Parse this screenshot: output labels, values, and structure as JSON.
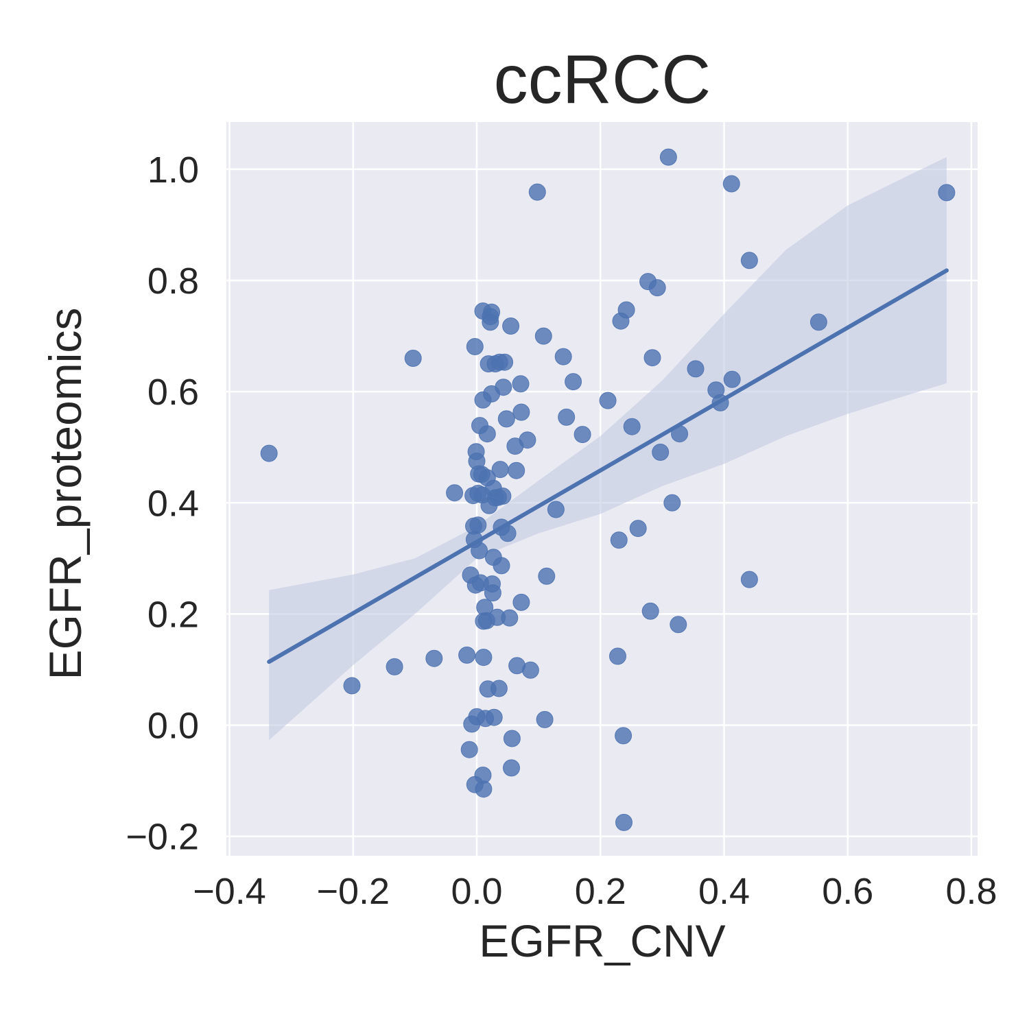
{
  "chart_data": {
    "type": "scatter",
    "title": "ccRCC",
    "xlabel": "EGFR_CNV",
    "ylabel": "EGFR_proteomics",
    "xlim": [
      -0.405,
      0.81
    ],
    "ylim": [
      -0.235,
      1.085
    ],
    "xticks": [
      -0.4,
      -0.2,
      0.0,
      0.2,
      0.4,
      0.6,
      0.8
    ],
    "yticks": [
      -0.2,
      0.0,
      0.2,
      0.4,
      0.6,
      0.8,
      1.0
    ],
    "xtick_labels": [
      "−0.4",
      "−0.2",
      "0.0",
      "0.2",
      "0.4",
      "0.6",
      "0.8"
    ],
    "ytick_labels": [
      "−0.2",
      "0.0",
      "0.2",
      "0.4",
      "0.6",
      "0.8",
      "1.0"
    ],
    "grid": true,
    "colors": {
      "background": "#eaeaf2",
      "grid": "#ffffff",
      "points": "#4c72b0",
      "line": "#4c72b0",
      "band": "#c3cce3",
      "text": "#262626"
    },
    "points": [
      [
        -0.336,
        0.489
      ],
      [
        -0.202,
        0.071
      ],
      [
        -0.133,
        0.105
      ],
      [
        -0.103,
        0.66
      ],
      [
        -0.069,
        0.12
      ],
      [
        -0.036,
        0.418
      ],
      [
        -0.016,
        0.126
      ],
      [
        -0.012,
        -0.044
      ],
      [
        -0.01,
        0.27
      ],
      [
        -0.008,
        0.002
      ],
      [
        -0.006,
        0.413
      ],
      [
        -0.005,
        0.358
      ],
      [
        -0.004,
        0.334
      ],
      [
        -0.003,
        0.681
      ],
      [
        -0.003,
        -0.107
      ],
      [
        -0.002,
        0.252
      ],
      [
        -0.001,
        0.492
      ],
      [
        0.0,
        0.475
      ],
      [
        0.0,
        0.015
      ],
      [
        0.002,
        0.36
      ],
      [
        0.002,
        0.417
      ],
      [
        0.003,
        0.452
      ],
      [
        0.004,
        0.314
      ],
      [
        0.005,
        0.539
      ],
      [
        0.006,
        0.256
      ],
      [
        0.008,
        0.451
      ],
      [
        0.009,
        0.414
      ],
      [
        0.01,
        0.745
      ],
      [
        0.01,
        -0.09
      ],
      [
        0.01,
        0.585
      ],
      [
        0.011,
        0.187
      ],
      [
        0.011,
        0.122
      ],
      [
        0.011,
        -0.115
      ],
      [
        0.013,
        0.212
      ],
      [
        0.014,
        0.012
      ],
      [
        0.016,
        0.188
      ],
      [
        0.017,
        0.445
      ],
      [
        0.017,
        0.524
      ],
      [
        0.018,
        0.065
      ],
      [
        0.019,
        0.65
      ],
      [
        0.02,
        0.395
      ],
      [
        0.022,
        0.725
      ],
      [
        0.022,
        0.735
      ],
      [
        0.024,
        0.596
      ],
      [
        0.024,
        0.743
      ],
      [
        0.025,
        0.254
      ],
      [
        0.026,
        0.238
      ],
      [
        0.027,
        0.302
      ],
      [
        0.027,
        0.426
      ],
      [
        0.028,
        0.014
      ],
      [
        0.03,
        0.409
      ],
      [
        0.03,
        0.65
      ],
      [
        0.033,
        0.194
      ],
      [
        0.035,
        0.41
      ],
      [
        0.036,
        0.066
      ],
      [
        0.037,
        0.653
      ],
      [
        0.038,
        0.46
      ],
      [
        0.04,
        0.287
      ],
      [
        0.04,
        0.356
      ],
      [
        0.042,
        0.412
      ],
      [
        0.043,
        0.608
      ],
      [
        0.045,
        0.653
      ],
      [
        0.048,
        0.551
      ],
      [
        0.05,
        0.345
      ],
      [
        0.053,
        0.193
      ],
      [
        0.055,
        0.718
      ],
      [
        0.056,
        -0.077
      ],
      [
        0.057,
        -0.024
      ],
      [
        0.062,
        0.502
      ],
      [
        0.064,
        0.458
      ],
      [
        0.065,
        0.107
      ],
      [
        0.071,
        0.614
      ],
      [
        0.072,
        0.563
      ],
      [
        0.072,
        0.221
      ],
      [
        0.082,
        0.513
      ],
      [
        0.087,
        0.099
      ],
      [
        0.098,
        0.959
      ],
      [
        0.108,
        0.7
      ],
      [
        0.11,
        0.01
      ],
      [
        0.113,
        0.268
      ],
      [
        0.128,
        0.388
      ],
      [
        0.14,
        0.663
      ],
      [
        0.145,
        0.554
      ],
      [
        0.156,
        0.618
      ],
      [
        0.171,
        0.523
      ],
      [
        0.212,
        0.584
      ],
      [
        0.228,
        0.124
      ],
      [
        0.23,
        0.333
      ],
      [
        0.233,
        0.727
      ],
      [
        0.237,
        -0.019
      ],
      [
        0.238,
        -0.175
      ],
      [
        0.242,
        0.747
      ],
      [
        0.251,
        0.537
      ],
      [
        0.261,
        0.354
      ],
      [
        0.277,
        0.798
      ],
      [
        0.281,
        0.205
      ],
      [
        0.284,
        0.661
      ],
      [
        0.292,
        0.787
      ],
      [
        0.297,
        0.491
      ],
      [
        0.31,
        1.022
      ],
      [
        0.316,
        0.4
      ],
      [
        0.326,
        0.181
      ],
      [
        0.328,
        0.524
      ],
      [
        0.354,
        0.641
      ],
      [
        0.387,
        0.603
      ],
      [
        0.394,
        0.58
      ],
      [
        0.412,
        0.974
      ],
      [
        0.413,
        0.622
      ],
      [
        0.441,
        0.836
      ],
      [
        0.441,
        0.262
      ],
      [
        0.553,
        0.725
      ],
      [
        0.76,
        0.958
      ]
    ],
    "regression_line": {
      "x": [
        -0.336,
        0.76
      ],
      "y": [
        0.114,
        0.818
      ]
    },
    "confidence_band": {
      "x": [
        -0.336,
        -0.2,
        -0.1,
        0.0,
        0.1,
        0.2,
        0.3,
        0.4,
        0.5,
        0.6,
        0.7,
        0.76
      ],
      "upper": [
        0.243,
        0.271,
        0.3,
        0.358,
        0.44,
        0.52,
        0.62,
        0.74,
        0.855,
        0.935,
        0.99,
        1.022
      ],
      "lower": [
        -0.027,
        0.108,
        0.2,
        0.3,
        0.345,
        0.38,
        0.43,
        0.47,
        0.52,
        0.56,
        0.595,
        0.615
      ]
    }
  }
}
